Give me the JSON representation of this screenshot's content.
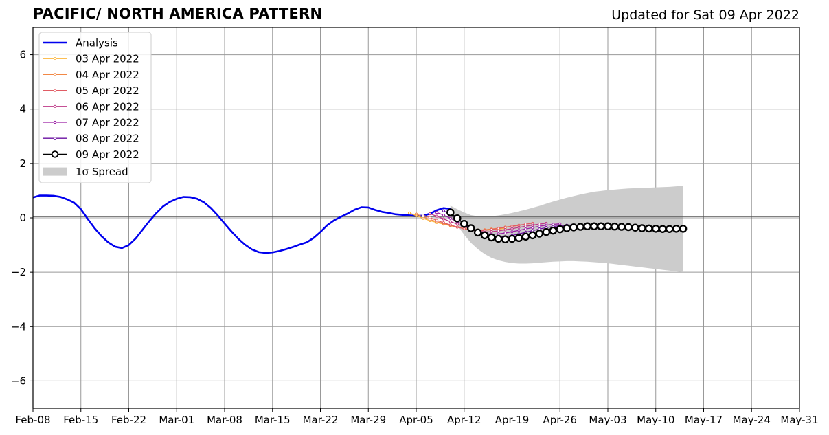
{
  "chart_data": {
    "type": "line",
    "title": "PACIFIC/ NORTH AMERICA PATTERN",
    "subtitle": "Updated for Sat 09 Apr 2022",
    "xlabel": "",
    "ylabel": "",
    "x_range": [
      "2022-02-08",
      "2022-05-31"
    ],
    "ylim": [
      -7,
      7
    ],
    "grid": true,
    "legend_position": "top-left",
    "x_ticks": [
      "Feb-08",
      "Feb-15",
      "Feb-22",
      "Mar-01",
      "Mar-08",
      "Mar-15",
      "Mar-22",
      "Mar-29",
      "Apr-05",
      "Apr-12",
      "Apr-19",
      "Apr-26",
      "May-03",
      "May-10",
      "May-17",
      "May-24",
      "May-31"
    ],
    "y_ticks": [
      6,
      4,
      2,
      0,
      -2,
      -4,
      -6
    ],
    "y_tick_labels": [
      "6",
      "4",
      "2",
      "0",
      "−2",
      "−4",
      "−6"
    ],
    "analysis": {
      "name": "Analysis",
      "color": "#0000ee",
      "start": "2022-02-08",
      "values": [
        0.75,
        0.82,
        0.82,
        0.81,
        0.77,
        0.68,
        0.56,
        0.32,
        -0.04,
        -0.38,
        -0.67,
        -0.9,
        -1.06,
        -1.11,
        -1.0,
        -0.76,
        -0.44,
        -0.12,
        0.17,
        0.42,
        0.59,
        0.7,
        0.77,
        0.76,
        0.7,
        0.57,
        0.36,
        0.09,
        -0.21,
        -0.5,
        -0.77,
        -0.99,
        -1.16,
        -1.26,
        -1.29,
        -1.27,
        -1.22,
        -1.15,
        -1.07,
        -0.98,
        -0.9,
        -0.74,
        -0.52,
        -0.27,
        -0.09,
        0.04,
        0.16,
        0.3,
        0.39,
        0.38,
        0.29,
        0.22,
        0.18,
        0.13,
        0.11,
        0.09,
        0.07,
        0.08,
        0.15,
        0.28,
        0.36,
        0.33
      ]
    },
    "forecasts": [
      {
        "name": "03 Apr 2022",
        "color": "#fbb53a",
        "start": "2022-04-04",
        "values": [
          0.18,
          0.08,
          -0.02,
          -0.1,
          -0.17,
          -0.23,
          -0.29,
          -0.34,
          -0.39,
          -0.43,
          -0.45,
          -0.46,
          -0.44,
          -0.42,
          -0.38
        ]
      },
      {
        "name": "04 Apr 2022",
        "color": "#f28845",
        "start": "2022-04-05",
        "values": [
          0.14,
          0.04,
          -0.06,
          -0.14,
          -0.21,
          -0.28,
          -0.34,
          -0.4,
          -0.44,
          -0.45,
          -0.44,
          -0.41,
          -0.38,
          -0.34,
          -0.31,
          -0.28
        ]
      },
      {
        "name": "05 Apr 2022",
        "color": "#e05c64",
        "start": "2022-04-06",
        "values": [
          0.1,
          0.01,
          -0.09,
          -0.18,
          -0.26,
          -0.34,
          -0.4,
          -0.46,
          -0.48,
          -0.46,
          -0.43,
          -0.39,
          -0.35,
          -0.31,
          -0.27,
          -0.23,
          -0.2
        ]
      },
      {
        "name": "06 Apr 2022",
        "color": "#bd3786",
        "start": "2022-04-07",
        "values": [
          0.15,
          0.06,
          -0.04,
          -0.14,
          -0.23,
          -0.32,
          -0.41,
          -0.48,
          -0.52,
          -0.51,
          -0.48,
          -0.44,
          -0.4,
          -0.35,
          -0.31,
          -0.27,
          -0.23,
          -0.2
        ]
      },
      {
        "name": "07 Apr 2022",
        "color": "#9a1ea5",
        "start": "2022-04-08",
        "values": [
          0.2,
          0.1,
          -0.02,
          -0.14,
          -0.26,
          -0.38,
          -0.49,
          -0.57,
          -0.6,
          -0.59,
          -0.56,
          -0.51,
          -0.46,
          -0.41,
          -0.36,
          -0.31,
          -0.27,
          -0.24,
          -0.22
        ]
      },
      {
        "name": "08 Apr 2022",
        "color": "#6a0fa0",
        "start": "2022-04-09",
        "values": [
          0.26,
          0.12,
          -0.04,
          -0.2,
          -0.36,
          -0.5,
          -0.62,
          -0.69,
          -0.71,
          -0.69,
          -0.65,
          -0.59,
          -0.53,
          -0.47,
          -0.41,
          -0.36,
          -0.32,
          -0.29,
          -0.27,
          -0.26
        ]
      },
      {
        "name": "09 Apr 2022",
        "color": "#000000",
        "start": "2022-04-10",
        "values": [
          0.2,
          -0.02,
          -0.22,
          -0.38,
          -0.54,
          -0.64,
          -0.72,
          -0.77,
          -0.79,
          -0.77,
          -0.74,
          -0.69,
          -0.64,
          -0.58,
          -0.52,
          -0.47,
          -0.42,
          -0.38,
          -0.35,
          -0.33,
          -0.31,
          -0.31,
          -0.31,
          -0.31,
          -0.32,
          -0.33,
          -0.34,
          -0.36,
          -0.38,
          -0.39,
          -0.4,
          -0.41,
          -0.41,
          -0.4,
          -0.4
        ]
      }
    ],
    "spread": {
      "name": "1σ Spread",
      "color": "#cccccc",
      "start": "2022-04-10",
      "upper": [
        0.45,
        0.32,
        0.2,
        0.1,
        0.06,
        0.05,
        0.06,
        0.09,
        0.13,
        0.18,
        0.24,
        0.3,
        0.37,
        0.44,
        0.52,
        0.6,
        0.67,
        0.74,
        0.8,
        0.86,
        0.91,
        0.96,
        0.99,
        1.02,
        1.04,
        1.06,
        1.08,
        1.09,
        1.1,
        1.11,
        1.12,
        1.13,
        1.14,
        1.16,
        1.18
      ],
      "lower": [
        0.05,
        -0.28,
        -0.62,
        -0.92,
        -1.15,
        -1.33,
        -1.47,
        -1.56,
        -1.62,
        -1.66,
        -1.68,
        -1.68,
        -1.67,
        -1.65,
        -1.63,
        -1.61,
        -1.6,
        -1.59,
        -1.59,
        -1.6,
        -1.61,
        -1.63,
        -1.65,
        -1.67,
        -1.7,
        -1.73,
        -1.76,
        -1.79,
        -1.82,
        -1.85,
        -1.88,
        -1.91,
        -1.94,
        -1.97,
        -2.0
      ]
    }
  }
}
